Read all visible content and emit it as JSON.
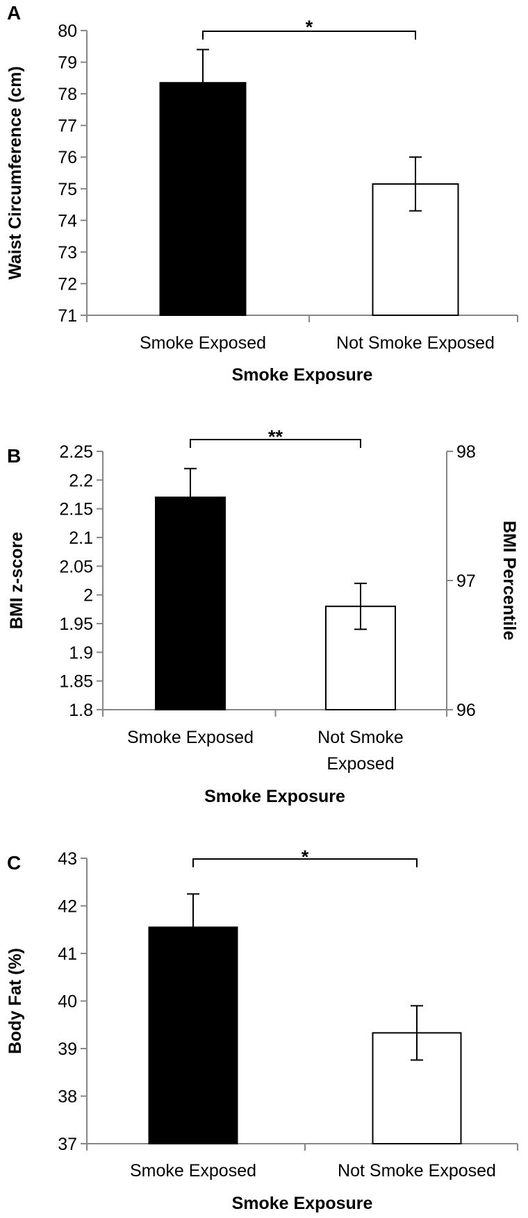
{
  "chart_data": [
    {
      "type": "bar",
      "panel_label": "A",
      "categories": [
        "Smoke Exposed",
        "Not Smoke Exposed"
      ],
      "category_lines": [
        [
          "Smoke Exposed"
        ],
        [
          "Not Smoke Exposed"
        ]
      ],
      "values": [
        78.35,
        75.15
      ],
      "error_bars": [
        1.05,
        0.85
      ],
      "bar_colors": [
        "#000000",
        "#ffffff"
      ],
      "xlabel": "Smoke Exposure",
      "ylabel": "Waist Circumference (cm)",
      "ylim": [
        71,
        80
      ],
      "yticks": [
        "71",
        "72",
        "73",
        "74",
        "75",
        "76",
        "77",
        "78",
        "79",
        "80"
      ],
      "significance": "*",
      "grid": false,
      "legend": "none"
    },
    {
      "type": "bar",
      "panel_label": "B",
      "categories": [
        "Smoke Exposed",
        "Not Smoke Exposed"
      ],
      "category_lines": [
        [
          "Smoke Exposed"
        ],
        [
          "Not Smoke",
          "Exposed"
        ]
      ],
      "values": [
        2.17,
        1.98
      ],
      "error_bars": [
        0.05,
        0.04
      ],
      "bar_colors": [
        "#000000",
        "#ffffff"
      ],
      "xlabel": "Smoke Exposure",
      "ylabel": "BMI z-score",
      "ylim": [
        1.8,
        2.25
      ],
      "yticks": [
        "1.8",
        "1.85",
        "1.9",
        "1.95",
        "2",
        "2.05",
        "2.1",
        "2.15",
        "2.2",
        "2.25"
      ],
      "y2label": "BMI Percentile",
      "y2lim": [
        96,
        98
      ],
      "y2ticks": [
        "96",
        "97",
        "98"
      ],
      "significance": "**",
      "grid": false,
      "legend": "none"
    },
    {
      "type": "bar",
      "panel_label": "C",
      "categories": [
        "Smoke Exposed",
        "Not Smoke Exposed"
      ],
      "category_lines": [
        [
          "Smoke Exposed"
        ],
        [
          "Not Smoke Exposed"
        ]
      ],
      "values": [
        41.55,
        39.33
      ],
      "error_bars": [
        0.7,
        0.57
      ],
      "bar_colors": [
        "#000000",
        "#ffffff"
      ],
      "xlabel": "Smoke Exposure",
      "ylabel": "Body Fat (%)",
      "ylim": [
        37,
        43
      ],
      "yticks": [
        "37",
        "38",
        "39",
        "40",
        "41",
        "42",
        "43"
      ],
      "significance": "*",
      "grid": false,
      "legend": "none"
    }
  ]
}
